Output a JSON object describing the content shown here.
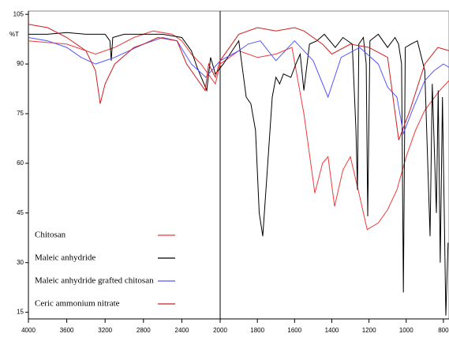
{
  "chart_data": {
    "type": "line",
    "y_label": "%T",
    "xlim": [
      4000,
      770
    ],
    "x_break": 2000,
    "xticks": [
      4000,
      3600,
      3200,
      2800,
      2400,
      2000,
      1800,
      1600,
      1400,
      1200,
      1000,
      800
    ],
    "ylim": [
      13,
      106
    ],
    "yticks": [
      15,
      30,
      45,
      60,
      75,
      90,
      105
    ],
    "cursor_x": 2000,
    "legend": "lower left",
    "series": [
      {
        "name": "Chitosan",
        "color": "#ee3b3b",
        "x": [
          4000,
          3600,
          3300,
          3100,
          2900,
          2700,
          2500,
          2400,
          2300,
          2200,
          2050,
          2000,
          1900,
          1800,
          1700,
          1614,
          1550,
          1491,
          1450,
          1420,
          1385,
          1340,
          1300,
          1250,
          1210,
          1150,
          1100,
          1050,
          1000,
          950,
          900,
          820,
          770
        ],
        "values": [
          97,
          96,
          93,
          95,
          98,
          100,
          99,
          97,
          93,
          90,
          84,
          90,
          94,
          92,
          93,
          95,
          75,
          51,
          60,
          62,
          47,
          58,
          62,
          50,
          40,
          42,
          46,
          52,
          62,
          70,
          76,
          82,
          85
        ]
      },
      {
        "name": "Maleic anhydride",
        "color": "#000000",
        "x": [
          4000,
          3800,
          3600,
          3400,
          3200,
          3150,
          3136,
          3120,
          3000,
          2800,
          2600,
          2400,
          2300,
          2240,
          2140,
          2100,
          2050,
          1983,
          1900,
          1860,
          1835,
          1810,
          1790,
          1771,
          1750,
          1720,
          1700,
          1680,
          1660,
          1620,
          1593,
          1570,
          1550,
          1520,
          1480,
          1440,
          1381,
          1340,
          1290,
          1270,
          1262,
          1255,
          1230,
          1215,
          1207,
          1195,
          1150,
          1100,
          1060,
          1041,
          1025,
          1015,
          1005,
          975,
          940,
          900,
          872,
          860,
          838,
          828,
          817,
          805,
          787,
          775
        ],
        "values": [
          99,
          99,
          99.5,
          99,
          99,
          97,
          91,
          98,
          99,
          99,
          99,
          98,
          94,
          89,
          82,
          92,
          87,
          90,
          97,
          80,
          78,
          70,
          45,
          38,
          55,
          80,
          86,
          84,
          87,
          86,
          90,
          93,
          82,
          96,
          97,
          99,
          95,
          98,
          96,
          70,
          52,
          96,
          98,
          90,
          44,
          97,
          99,
          95,
          98,
          96,
          90,
          21,
          95,
          96,
          97,
          88,
          38,
          84,
          45,
          82,
          30,
          80,
          14,
          36
        ]
      },
      {
        "name": "Maleic anhydride grafted chitosan",
        "color": "#5555ff",
        "x": [
          4000,
          3800,
          3600,
          3450,
          3300,
          3100,
          2950,
          2800,
          2600,
          2450,
          2300,
          2150,
          2000,
          1900,
          1850,
          1784,
          1700,
          1600,
          1550,
          1500,
          1420,
          1350,
          1250,
          1150,
          1100,
          1050,
          1015,
          960,
          900,
          850,
          800,
          770
        ],
        "values": [
          98,
          97,
          95,
          92,
          90,
          92,
          94,
          96,
          98,
          97,
          90,
          86,
          91,
          94,
          96,
          97,
          91,
          97,
          94,
          91,
          80,
          92,
          95,
          90,
          83,
          80,
          69,
          77,
          85,
          88,
          90,
          89
        ]
      },
      {
        "name": "Ceric ammonium nitrate",
        "color": "#cc1f1f",
        "x": [
          4000,
          3800,
          3600,
          3400,
          3300,
          3251,
          3200,
          3100,
          2900,
          2800,
          2650,
          2450,
          2350,
          2156,
          2120,
          2050,
          2000,
          1900,
          1800,
          1700,
          1600,
          1550,
          1450,
          1400,
          1300,
          1200,
          1100,
          1040,
          980,
          900,
          830,
          770
        ],
        "values": [
          102,
          101,
          98,
          94,
          88,
          78,
          84,
          90,
          95,
          96,
          98,
          97,
          90,
          82,
          90,
          86,
          91,
          99,
          101,
          100,
          101,
          100,
          96,
          93,
          96,
          95,
          92,
          67,
          76,
          90,
          95,
          94
        ]
      }
    ]
  }
}
